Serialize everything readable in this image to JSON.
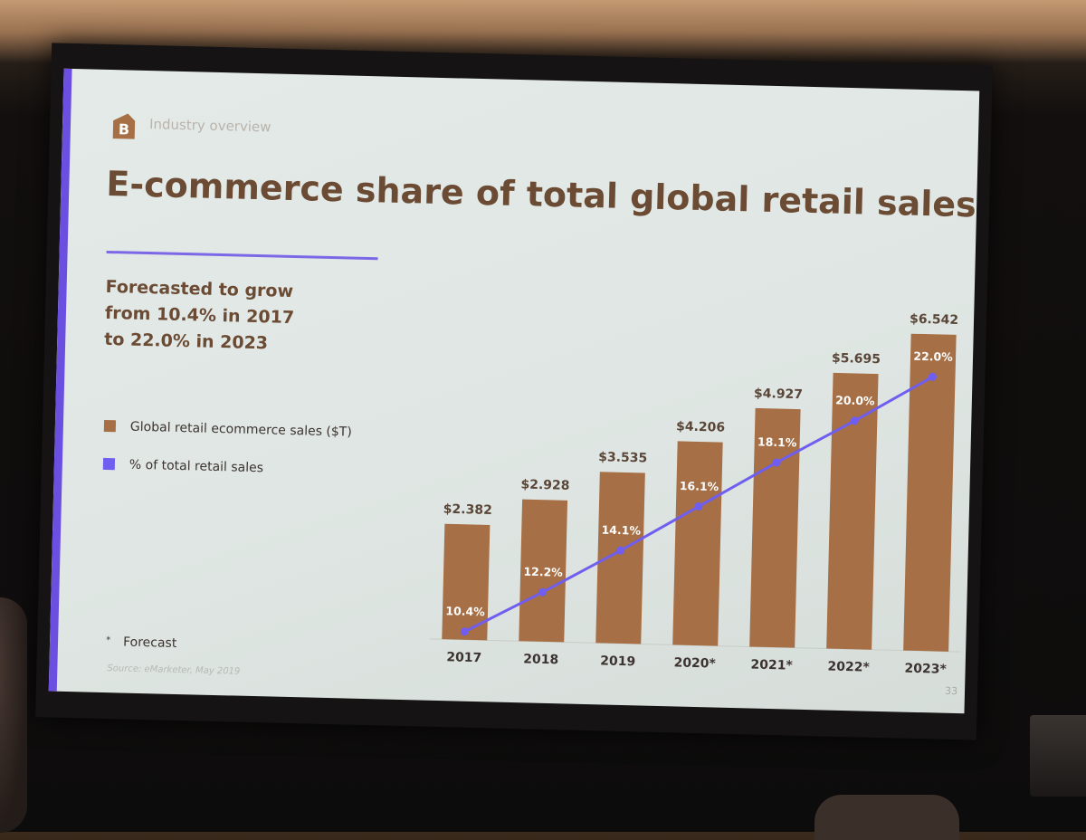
{
  "slide": {
    "section_label": "Industry overview",
    "logo_letter": "B",
    "title": "E-commerce share of total global retail sales",
    "subtitle_lines": [
      "Forecasted to grow",
      "from 10.4% in 2017",
      "to 22.0% in 2023"
    ],
    "legend": [
      {
        "label": "Global retail ecommerce sales ($T)",
        "color": "#a66f45"
      },
      {
        "label": "% of total retail sales",
        "color": "#6f5ef0"
      }
    ],
    "forecast_marker": "*",
    "forecast_label": "Forecast",
    "source": "Source: eMarketer, May 2019",
    "page_number": "33"
  },
  "chart_data": {
    "type": "bar",
    "categories": [
      "2017",
      "2018",
      "2019",
      "2020*",
      "2021*",
      "2022*",
      "2023*"
    ],
    "series": [
      {
        "name": "Global retail ecommerce sales ($T)",
        "type": "bar",
        "values": [
          2.382,
          2.928,
          3.535,
          4.206,
          4.927,
          5.695,
          6.542
        ],
        "labels": [
          "$2.382",
          "$2.928",
          "$3.535",
          "$4.206",
          "$4.927",
          "$5.695",
          "$6.542"
        ],
        "color": "#a66f45"
      },
      {
        "name": "% of total retail sales",
        "type": "line",
        "values": [
          10.4,
          12.2,
          14.1,
          16.1,
          18.1,
          20.0,
          22.0
        ],
        "labels": [
          "10.4%",
          "12.2%",
          "14.1%",
          "16.1%",
          "18.1%",
          "20.0%",
          "22.0%"
        ],
        "color": "#6f5ef0"
      }
    ],
    "bar_ylim": [
      0,
      6.542
    ],
    "line_ylim": [
      10.4,
      22.0
    ],
    "grid": false
  }
}
